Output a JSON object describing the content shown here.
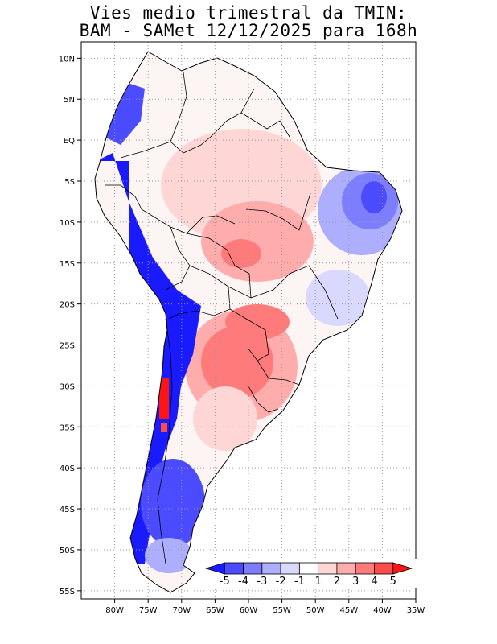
{
  "title": {
    "line1": "Vies medio trimestral da TMIN:",
    "line2": "BAM - SAMet 12/12/2025  para 168h"
  },
  "map": {
    "region": "South America",
    "lon_range": [
      -85,
      -35
    ],
    "lat_range": [
      -56,
      12
    ],
    "lat_labels": [
      "10N",
      "5N",
      "EQ",
      "5S",
      "10S",
      "15S",
      "20S",
      "25S",
      "30S",
      "35S",
      "40S",
      "45S",
      "50S",
      "55S"
    ],
    "lon_labels": [
      "80W",
      "75W",
      "70W",
      "65W",
      "60W",
      "55W",
      "50W",
      "45W",
      "40W",
      "35W"
    ]
  },
  "colorbar": {
    "labels": [
      "-5",
      "-4",
      "-3",
      "-2",
      "-1",
      "1",
      "2",
      "3",
      "4",
      "5"
    ],
    "colors": [
      "#1a1aff",
      "#4b4bff",
      "#7d7dff",
      "#aeaeff",
      "#d9d9ff",
      "#ffffff",
      "#ffd6d6",
      "#ffacac",
      "#ff7b7b",
      "#ff4a4a",
      "#ff1414"
    ]
  }
}
